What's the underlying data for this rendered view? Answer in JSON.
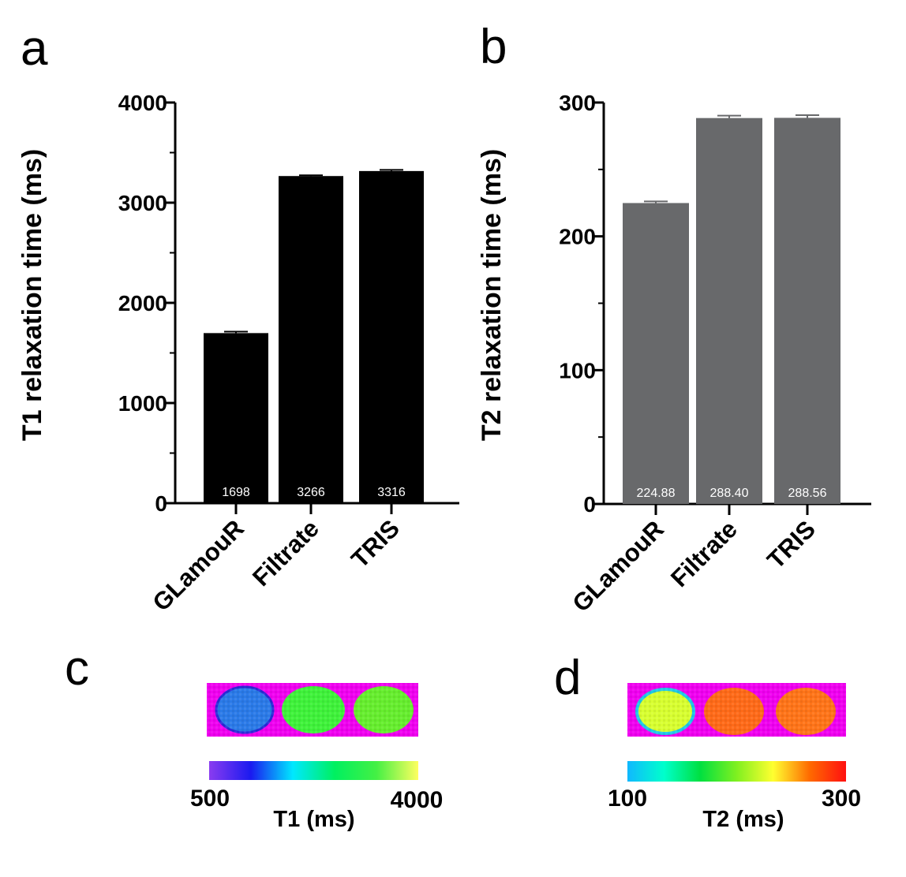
{
  "panels": {
    "a": "a",
    "b": "b",
    "c": "c",
    "d": "d"
  },
  "chart_data": [
    {
      "type": "bar",
      "panel": "a",
      "title": "",
      "xlabel": "",
      "ylabel": "T1 relaxation time (ms)",
      "ylim": [
        0,
        4000
      ],
      "yticks": [
        "0",
        "1000",
        "2000",
        "3000",
        "4000"
      ],
      "categories": [
        "GLamouR",
        "Filtrate",
        "TRIS"
      ],
      "values": [
        1698,
        3266,
        3316
      ],
      "errors": [
        15,
        8,
        12
      ],
      "data_labels": [
        "1698",
        "3266",
        "3316"
      ],
      "bar_color": "#000000"
    },
    {
      "type": "bar",
      "panel": "b",
      "title": "",
      "xlabel": "",
      "ylabel": "T2 relaxation time (ms)",
      "ylim": [
        0,
        300
      ],
      "yticks": [
        "0",
        "100",
        "200",
        "300"
      ],
      "categories": [
        "GLamouR",
        "Filtrate",
        "TRIS"
      ],
      "values": [
        224.88,
        288.4,
        288.56
      ],
      "errors": [
        1.2,
        1.8,
        2.0
      ],
      "data_labels": [
        "224.88",
        "288.40",
        "288.56"
      ],
      "bar_color": "#68696b"
    }
  ],
  "maps": {
    "c": {
      "background": "#f000f0",
      "sample_colors": [
        "#2a7ae8",
        "#3ff23a",
        "#66ee2e"
      ],
      "colorbar_min": "500",
      "colorbar_max": "4000",
      "colorbar_title": "T1 (ms)",
      "colorbar_colors": [
        "#8a3cf0",
        "#1a1af0",
        "#00e8ff",
        "#00f060",
        "#44f044",
        "#ffff60"
      ]
    },
    "d": {
      "background": "#f000f0",
      "sample_colors": [
        "#d8ff30",
        "#ff6a18",
        "#ff7418"
      ],
      "colorbar_min": "100",
      "colorbar_max": "300",
      "colorbar_title": "T2 (ms)",
      "colorbar_colors": [
        "#10b8ff",
        "#00ffcc",
        "#00e040",
        "#80f020",
        "#ffff30",
        "#ff6a00",
        "#ff1010"
      ]
    }
  }
}
